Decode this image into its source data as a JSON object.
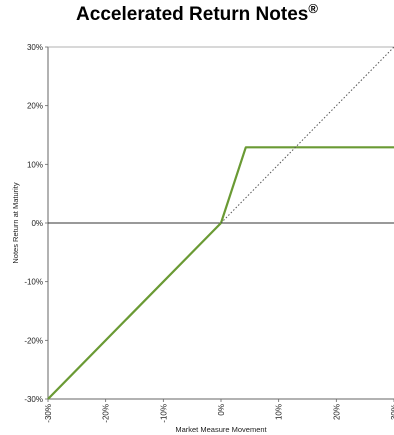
{
  "title": {
    "text": "Accelerated Return Notes",
    "mark": "®"
  },
  "chart_data": {
    "type": "line",
    "title": "Accelerated Return Notes®",
    "xlabel": "Market Measure Movement",
    "ylabel": "Notes Return at Maturity",
    "xlim": [
      -30,
      30
    ],
    "ylim": [
      -30,
      30
    ],
    "xticks": [
      -30,
      -20,
      -10,
      0,
      10,
      20,
      30
    ],
    "yticks": [
      -30,
      -20,
      -10,
      0,
      10,
      20,
      30
    ],
    "xtick_labels": [
      "-30%",
      "-20%",
      "-10%",
      "0%",
      "10%",
      "20%",
      "30%"
    ],
    "ytick_labels": [
      "-30%",
      "-20%",
      "-10%",
      "0%",
      "10%",
      "20%",
      "30%"
    ],
    "grid": false,
    "series": [
      {
        "style": "solid",
        "color": "#6a9a34",
        "x": [
          -30,
          0,
          4.3,
          30
        ],
        "y": [
          -30,
          0,
          12.9,
          12.9
        ]
      },
      {
        "style": "dotted",
        "color": "#555555",
        "x": [
          0,
          30
        ],
        "y": [
          0,
          30
        ]
      }
    ]
  }
}
